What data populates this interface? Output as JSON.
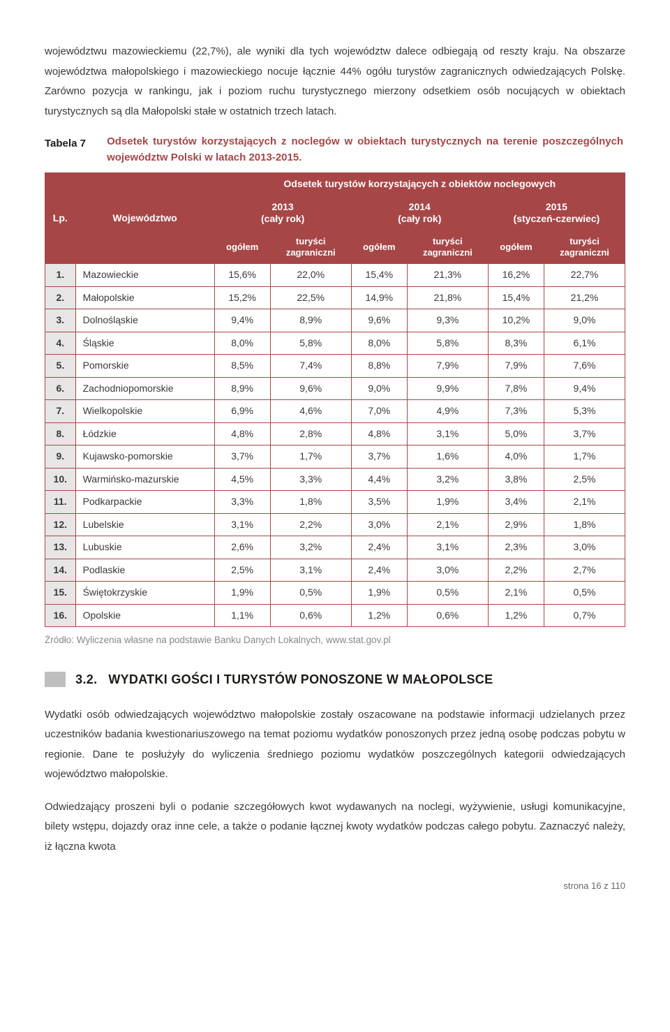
{
  "intro_paragraph": "województwu mazowieckiemu (22,7%), ale wyniki dla tych województw dalece odbiegają od reszty kraju. Na obszarze województwa małopolskiego i mazowieckiego nocuje łącznie 44% ogółu turystów zagranicznych odwiedzających Polskę. Zarówno pozycja w rankingu, jak i poziom ruchu turystycznego mierzony odsetkiem osób nocujących w obiektach turystycznych są dla Małopolski stałe w ostatnich trzech latach.",
  "table": {
    "label": "Tabela 7",
    "caption": "Odsetek turystów korzystających z noclegów w obiektach turystycznych na terenie poszczególnych województw Polski w latach 2013-2015.",
    "header_main": "Odsetek turystów korzystających z obiektów noclegowych",
    "col_lp": "Lp.",
    "col_woj": "Województwo",
    "col_2013": "2013\n(cały rok)",
    "col_2014": "2014\n(cały rok)",
    "col_2015": "2015\n(styczeń-czerwiec)",
    "sub_ogolem": "ogółem",
    "sub_zagr": "turyści\nzagraniczni",
    "rows": [
      {
        "lp": "1.",
        "w": "Mazowieckie",
        "v": [
          "15,6%",
          "22,0%",
          "15,4%",
          "21,3%",
          "16,2%",
          "22,7%"
        ]
      },
      {
        "lp": "2.",
        "w": "Małopolskie",
        "v": [
          "15,2%",
          "22,5%",
          "14,9%",
          "21,8%",
          "15,4%",
          "21,2%"
        ]
      },
      {
        "lp": "3.",
        "w": "Dolnośląskie",
        "v": [
          "9,4%",
          "8,9%",
          "9,6%",
          "9,3%",
          "10,2%",
          "9,0%"
        ]
      },
      {
        "lp": "4.",
        "w": "Śląskie",
        "v": [
          "8,0%",
          "5,8%",
          "8,0%",
          "5,8%",
          "8,3%",
          "6,1%"
        ]
      },
      {
        "lp": "5.",
        "w": "Pomorskie",
        "v": [
          "8,5%",
          "7,4%",
          "8,8%",
          "7,9%",
          "7,9%",
          "7,6%"
        ]
      },
      {
        "lp": "6.",
        "w": "Zachodniopomorskie",
        "v": [
          "8,9%",
          "9,6%",
          "9,0%",
          "9,9%",
          "7,8%",
          "9,4%"
        ]
      },
      {
        "lp": "7.",
        "w": "Wielkopolskie",
        "v": [
          "6,9%",
          "4,6%",
          "7,0%",
          "4,9%",
          "7,3%",
          "5,3%"
        ]
      },
      {
        "lp": "8.",
        "w": "Łódzkie",
        "v": [
          "4,8%",
          "2,8%",
          "4,8%",
          "3,1%",
          "5,0%",
          "3,7%"
        ]
      },
      {
        "lp": "9.",
        "w": "Kujawsko-pomorskie",
        "v": [
          "3,7%",
          "1,7%",
          "3,7%",
          "1,6%",
          "4,0%",
          "1,7%"
        ]
      },
      {
        "lp": "10.",
        "w": "Warmińsko-mazurskie",
        "v": [
          "4,5%",
          "3,3%",
          "4,4%",
          "3,2%",
          "3,8%",
          "2,5%"
        ]
      },
      {
        "lp": "11.",
        "w": "Podkarpackie",
        "v": [
          "3,3%",
          "1,8%",
          "3,5%",
          "1,9%",
          "3,4%",
          "2,1%"
        ]
      },
      {
        "lp": "12.",
        "w": "Lubelskie",
        "v": [
          "3,1%",
          "2,2%",
          "3,0%",
          "2,1%",
          "2,9%",
          "1,8%"
        ]
      },
      {
        "lp": "13.",
        "w": "Lubuskie",
        "v": [
          "2,6%",
          "3,2%",
          "2,4%",
          "3,1%",
          "2,3%",
          "3,0%"
        ]
      },
      {
        "lp": "14.",
        "w": "Podlaskie",
        "v": [
          "2,5%",
          "3,1%",
          "2,4%",
          "3,0%",
          "2,2%",
          "2,7%"
        ]
      },
      {
        "lp": "15.",
        "w": "Świętokrzyskie",
        "v": [
          "1,9%",
          "0,5%",
          "1,9%",
          "0,5%",
          "2,1%",
          "0,5%"
        ]
      },
      {
        "lp": "16.",
        "w": "Opolskie",
        "v": [
          "1,1%",
          "0,6%",
          "1,2%",
          "0,6%",
          "1,2%",
          "0,7%"
        ]
      }
    ],
    "source": "Źródło: Wyliczenia własne na podstawie Banku Danych Lokalnych, www.stat.gov.pl"
  },
  "section": {
    "number": "3.2.",
    "title": "WYDATKI GOŚCI I TURYSTÓW PONOSZONE W MAŁOPOLSCE"
  },
  "para2": "Wydatki osób odwiedzających województwo małopolskie zostały oszacowane na podstawie informacji udzielanych przez uczestników badania kwestionariuszowego na temat poziomu wydatków ponoszonych przez jedną osobę podczas pobytu w regionie. Dane te posłużyły do wyliczenia średniego poziomu wydatków poszczególnych kategorii odwiedzających województwo małopolskie.",
  "para3": "Odwiedzający proszeni byli o podanie szczegółowych kwot wydawanych na noclegi, wyżywienie, usługi komunikacyjne, bilety wstępu, dojazdy oraz inne cele, a także o podanie łącznej kwoty wydatków podczas całego pobytu. Zaznaczyć należy, iż łączna kwota",
  "footer": "strona 16 z 110"
}
